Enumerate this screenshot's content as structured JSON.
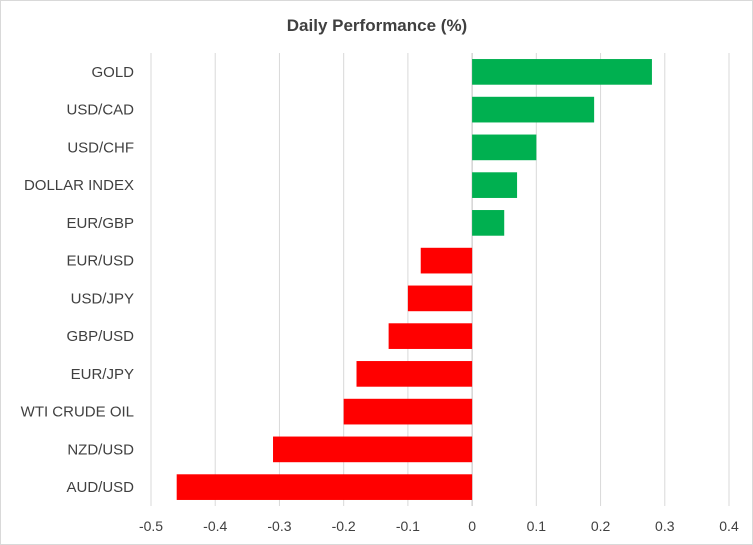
{
  "chart_data": {
    "type": "bar",
    "orientation": "horizontal",
    "title": "Daily Performance  (%)",
    "xlabel": "",
    "ylabel": "",
    "xlim": [
      -0.5,
      0.4
    ],
    "xticks": [
      "-0.5",
      "-0.4",
      "-0.3",
      "-0.2",
      "-0.1",
      "0",
      "0.1",
      "0.2",
      "0.3",
      "0.4"
    ],
    "grid": "vertical",
    "legend": "none",
    "categories": [
      "GOLD",
      "USD/CAD",
      "USD/CHF",
      "DOLLAR INDEX",
      "EUR/GBP",
      "EUR/USD",
      "USD/JPY",
      "GBP/USD",
      "EUR/JPY",
      "WTI CRUDE OIL",
      "NZD/USD",
      "AUD/USD"
    ],
    "values": [
      0.28,
      0.19,
      0.1,
      0.07,
      0.05,
      -0.08,
      -0.1,
      -0.13,
      -0.18,
      -0.2,
      -0.31,
      -0.46
    ],
    "colors": {
      "positive": "#00b050",
      "negative": "#ff0000",
      "grid": "#d9d9d9",
      "text": "#404040"
    }
  }
}
